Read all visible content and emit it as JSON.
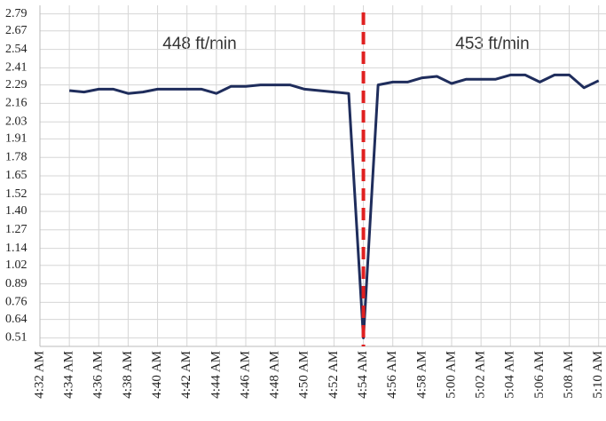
{
  "chart_data": {
    "type": "line",
    "categories": [
      "4:32 AM",
      null,
      "4:34 AM",
      null,
      "4:36 AM",
      null,
      "4:38 AM",
      null,
      "4:40 AM",
      null,
      "4:42 AM",
      null,
      "4:44 AM",
      null,
      "4:46 AM",
      null,
      "4:48 AM",
      null,
      "4:50 AM",
      null,
      "4:52 AM",
      null,
      "4:54 AM",
      null,
      "4:56 AM",
      null,
      "4:58 AM",
      null,
      "5:00 AM",
      null,
      "5:02 AM",
      null,
      "5:04 AM",
      null,
      "5:06 AM",
      null,
      "5:08 AM",
      null,
      "5:10 AM"
    ],
    "series": [
      {
        "color": "#1f2d5c",
        "values": [
          null,
          null,
          2.25,
          2.24,
          2.26,
          2.26,
          2.23,
          2.24,
          2.26,
          2.26,
          2.26,
          2.26,
          2.23,
          2.28,
          2.28,
          2.29,
          2.29,
          2.29,
          2.26,
          2.25,
          2.24,
          2.23,
          0.51,
          2.29,
          2.31,
          2.31,
          2.34,
          2.35,
          2.3,
          2.33,
          2.33,
          2.33,
          2.36,
          2.36,
          2.31,
          2.36,
          2.36,
          2.27,
          2.32
        ]
      }
    ],
    "ylim": [
      0.45,
      2.85
    ],
    "yticks": [
      {
        "value": 0.51,
        "label": "0.51"
      },
      0.64,
      0.76,
      0.89,
      1.02,
      1.14,
      1.27,
      {
        "value": 1.4,
        "label": "1.40"
      },
      1.52,
      1.65,
      1.78,
      1.91,
      2.03,
      2.16,
      2.29,
      2.41,
      2.54,
      2.67,
      2.79
    ],
    "grid": true,
    "annotations": [
      "448 ft/min",
      "453 ft/min"
    ],
    "divider": {
      "category": "4:54 AM",
      "color": "#e02020"
    }
  }
}
